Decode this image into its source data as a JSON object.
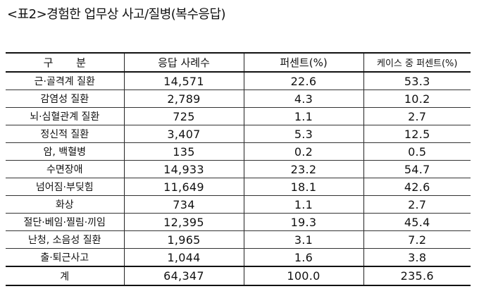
{
  "title": "<표2>경험한 업무상 사고/질병(복수응답)",
  "headers": [
    "구  분",
    "응답 사례수",
    "퍼센트(%)",
    "케이스 중 퍼센트(%)"
  ],
  "rows": [
    {
      "label": "근·골격계 질환",
      "count": "14,571",
      "percent": "22.6",
      "case_percent": "53.3"
    },
    {
      "label": "감염성 질환",
      "count": "2,789",
      "percent": "4.3",
      "case_percent": "10.2"
    },
    {
      "label": "뇌·심혈관계 질환",
      "count": "725",
      "percent": "1.1",
      "case_percent": "2.7"
    },
    {
      "label": "정신적 질환",
      "count": "3,407",
      "percent": "5.3",
      "case_percent": "12.5"
    },
    {
      "label": "암, 백혈병",
      "count": "135",
      "percent": "0.2",
      "case_percent": "0.5"
    },
    {
      "label": "수면장애",
      "count": "14,933",
      "percent": "23.2",
      "case_percent": "54.7"
    },
    {
      "label": "넘어짐·부딪힘",
      "count": "11,649",
      "percent": "18.1",
      "case_percent": "42.6"
    },
    {
      "label": "화상",
      "count": "734",
      "percent": "1.1",
      "case_percent": "2.7"
    },
    {
      "label": "절단·베임·찔림·끼임",
      "count": "12,395",
      "percent": "19.3",
      "case_percent": "45.4"
    },
    {
      "label": "난청, 소음성 질환",
      "count": "1,965",
      "percent": "3.1",
      "case_percent": "7.2"
    },
    {
      "label": "출·퇴근사고",
      "count": "1,044",
      "percent": "1.6",
      "case_percent": "3.8"
    }
  ],
  "total": {
    "label": "계",
    "count": "64,347",
    "percent": "100.0",
    "case_percent": "235.6"
  }
}
